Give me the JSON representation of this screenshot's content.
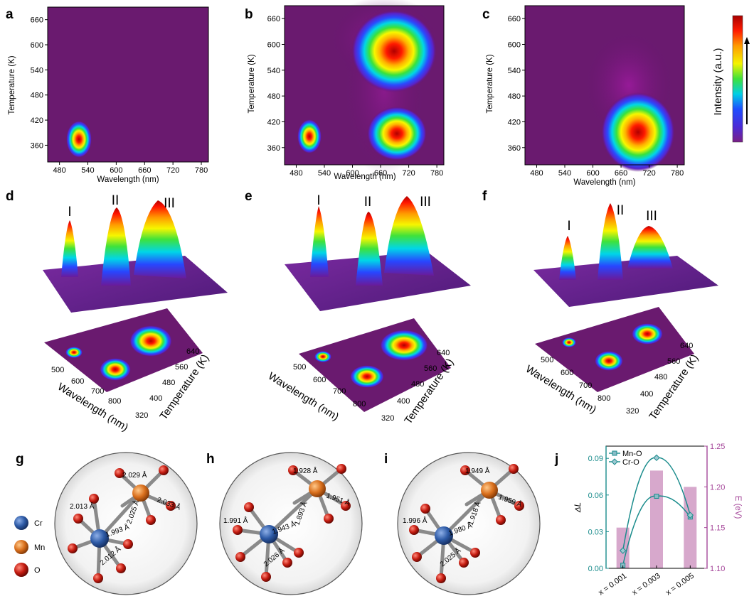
{
  "panel_labels": {
    "a": "a",
    "b": "b",
    "c": "c",
    "d": "d",
    "e": "e",
    "f": "f",
    "g": "g",
    "h": "h",
    "i": "i",
    "j": "j"
  },
  "heatmaps": {
    "xlabel": "Wavelength (nm)",
    "ylabel": "Temperature (K)",
    "xticks": [
      "480",
      "540",
      "600",
      "660",
      "720",
      "780"
    ],
    "yticks": [
      "360",
      "420",
      "480",
      "540",
      "600",
      "660"
    ],
    "xrange": [
      455,
      795
    ],
    "yrange": [
      320,
      690
    ]
  },
  "colorbar": {
    "label": "Intensity (a.u.)"
  },
  "plots3d": {
    "peak_labels": [
      "I",
      "II",
      "III"
    ],
    "wavelength_label": "Wavelength (nm)",
    "temperature_label": "Temperature (K)",
    "wavelength_ticks": [
      "500",
      "600",
      "700",
      "800"
    ],
    "temperature_ticks": [
      "320",
      "400",
      "480",
      "560",
      "640"
    ]
  },
  "legend_atoms": [
    {
      "name": "Cr",
      "color": "#2d5aa6"
    },
    {
      "name": "Mn",
      "color": "#d96f1c"
    },
    {
      "name": "O",
      "color": "#c41b10"
    }
  ],
  "structures": [
    {
      "bonds": [
        "2.013 Å",
        "1.993 Å",
        "2.012 Å",
        "2.025 Å",
        "2.029 Å",
        "2.033 Å"
      ]
    },
    {
      "bonds": [
        "1.991 Å",
        "1.943 Å",
        "2.026 Å",
        "1.893 Å",
        "1.928 Å",
        "1.951 Å"
      ]
    },
    {
      "bonds": [
        "1.996 Å",
        "1.980 Å",
        "2.025 Å",
        "1.918 Å",
        "1.949 Å",
        "1.959 Å"
      ]
    }
  ],
  "chart_data": {
    "type": "bar",
    "categories": [
      "x = 0.001",
      "x = 0.003",
      "x = 0.005"
    ],
    "series": [
      {
        "name": "Mn-O",
        "type": "line",
        "axis": "left",
        "values": [
          0.0025,
          0.059,
          0.042
        ]
      },
      {
        "name": "Cr-O",
        "type": "line",
        "axis": "left",
        "values": [
          0.0145,
          0.0905,
          0.0435
        ]
      },
      {
        "name": "",
        "type": "bar",
        "axis": "right",
        "values": [
          1.15,
          1.22,
          1.2
        ]
      }
    ],
    "ylabel": "ΔL",
    "y2label": "E (eV)",
    "ylim": [
      0.0,
      0.1
    ],
    "yticks": [
      "0.00",
      "0.03",
      "0.06",
      "0.09"
    ],
    "y2lim": [
      1.1,
      1.25
    ],
    "y2ticks": [
      "1.10",
      "1.15",
      "1.20",
      "1.25"
    ],
    "colors": {
      "lines": "#1a8c8c",
      "bars": "#d7a8cc",
      "right_axis": "#a5479a",
      "left_axis": "#1a8c8c"
    }
  }
}
